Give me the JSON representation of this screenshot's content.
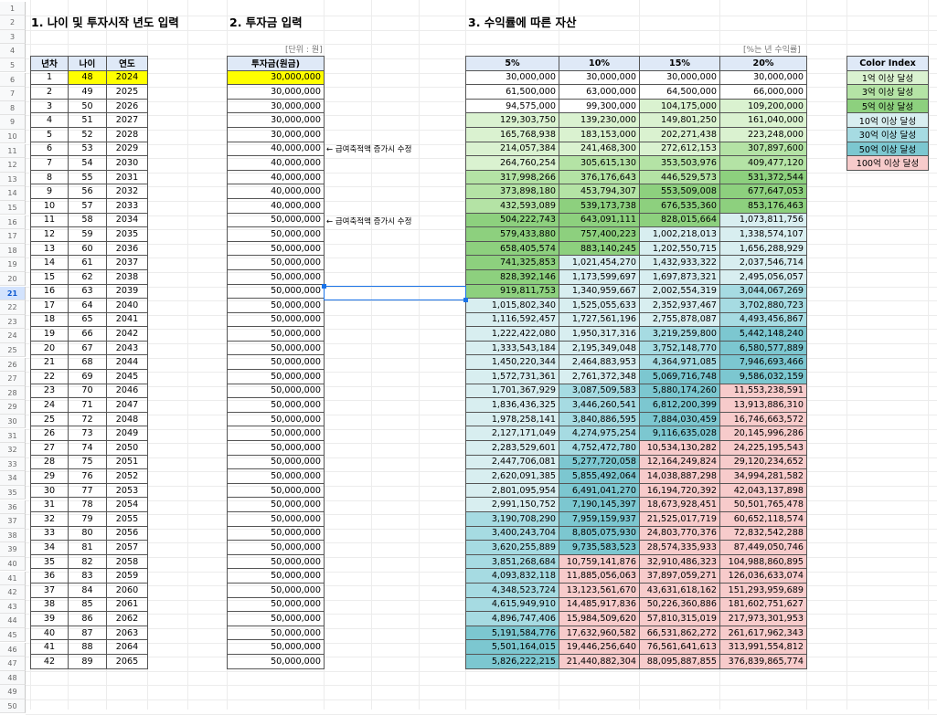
{
  "sections": {
    "s1": "1. 나이 및 투자시작 년도 입력",
    "s2": "2. 투자금 입력",
    "s3": "3. 수익률에 따른 자산"
  },
  "unit_label": "[단위 : 원]",
  "rate_note": "[%는 년 수익률]",
  "table1_headers": [
    "년차",
    "나이",
    "연도"
  ],
  "table2_header": "투자금(원금)",
  "table3_headers": [
    "5%",
    "10%",
    "15%",
    "20%"
  ],
  "notes": {
    "n1": "← 급여축적액 증가시 수정",
    "n2": "← 급여축적액 증가시 수정"
  },
  "color_index": {
    "title": "Color Index",
    "items": [
      {
        "label": "1억 이상 달성",
        "color": "#daf2d0"
      },
      {
        "label": "3억 이상 달성",
        "color": "#b4e3a5"
      },
      {
        "label": "5억 이상 달성",
        "color": "#8dd07e"
      },
      {
        "label": "10억 이상 달성",
        "color": "#d8eef0"
      },
      {
        "label": "30억 이상 달성",
        "color": "#a6dbe2"
      },
      {
        "label": "50억 이상 달성",
        "color": "#7cc7d0"
      },
      {
        "label": "100억 이상 달성",
        "color": "#f7cbcb"
      }
    ]
  },
  "rows": [
    {
      "n": "1",
      "age": "48",
      "year": "2024",
      "inv": "30,000,000",
      "v": [
        "30,000,000",
        "30,000,000",
        "30,000,000",
        "30,000,000"
      ]
    },
    {
      "n": "2",
      "age": "49",
      "year": "2025",
      "inv": "30,000,000",
      "v": [
        "61,500,000",
        "63,000,000",
        "64,500,000",
        "66,000,000"
      ]
    },
    {
      "n": "3",
      "age": "50",
      "year": "2026",
      "inv": "30,000,000",
      "v": [
        "94,575,000",
        "99,300,000",
        "104,175,000",
        "109,200,000"
      ]
    },
    {
      "n": "4",
      "age": "51",
      "year": "2027",
      "inv": "30,000,000",
      "v": [
        "129,303,750",
        "139,230,000",
        "149,801,250",
        "161,040,000"
      ]
    },
    {
      "n": "5",
      "age": "52",
      "year": "2028",
      "inv": "30,000,000",
      "v": [
        "165,768,938",
        "183,153,000",
        "202,271,438",
        "223,248,000"
      ]
    },
    {
      "n": "6",
      "age": "53",
      "year": "2029",
      "inv": "40,000,000",
      "v": [
        "214,057,384",
        "241,468,300",
        "272,612,153",
        "307,897,600"
      ]
    },
    {
      "n": "7",
      "age": "54",
      "year": "2030",
      "inv": "40,000,000",
      "v": [
        "264,760,254",
        "305,615,130",
        "353,503,976",
        "409,477,120"
      ]
    },
    {
      "n": "8",
      "age": "55",
      "year": "2031",
      "inv": "40,000,000",
      "v": [
        "317,998,266",
        "376,176,643",
        "446,529,573",
        "531,372,544"
      ]
    },
    {
      "n": "9",
      "age": "56",
      "year": "2032",
      "inv": "40,000,000",
      "v": [
        "373,898,180",
        "453,794,307",
        "553,509,008",
        "677,647,053"
      ]
    },
    {
      "n": "10",
      "age": "57",
      "year": "2033",
      "inv": "40,000,000",
      "v": [
        "432,593,089",
        "539,173,738",
        "676,535,360",
        "853,176,463"
      ]
    },
    {
      "n": "11",
      "age": "58",
      "year": "2034",
      "inv": "50,000,000",
      "v": [
        "504,222,743",
        "643,091,111",
        "828,015,664",
        "1,073,811,756"
      ]
    },
    {
      "n": "12",
      "age": "59",
      "year": "2035",
      "inv": "50,000,000",
      "v": [
        "579,433,880",
        "757,400,223",
        "1,002,218,013",
        "1,338,574,107"
      ]
    },
    {
      "n": "13",
      "age": "60",
      "year": "2036",
      "inv": "50,000,000",
      "v": [
        "658,405,574",
        "883,140,245",
        "1,202,550,715",
        "1,656,288,929"
      ]
    },
    {
      "n": "14",
      "age": "61",
      "year": "2037",
      "inv": "50,000,000",
      "v": [
        "741,325,853",
        "1,021,454,270",
        "1,432,933,322",
        "2,037,546,714"
      ]
    },
    {
      "n": "15",
      "age": "62",
      "year": "2038",
      "inv": "50,000,000",
      "v": [
        "828,392,146",
        "1,173,599,697",
        "1,697,873,321",
        "2,495,056,057"
      ]
    },
    {
      "n": "16",
      "age": "63",
      "year": "2039",
      "inv": "50,000,000",
      "v": [
        "919,811,753",
        "1,340,959,667",
        "2,002,554,319",
        "3,044,067,269"
      ]
    },
    {
      "n": "17",
      "age": "64",
      "year": "2040",
      "inv": "50,000,000",
      "v": [
        "1,015,802,340",
        "1,525,055,633",
        "2,352,937,467",
        "3,702,880,723"
      ]
    },
    {
      "n": "18",
      "age": "65",
      "year": "2041",
      "inv": "50,000,000",
      "v": [
        "1,116,592,457",
        "1,727,561,196",
        "2,755,878,087",
        "4,493,456,867"
      ]
    },
    {
      "n": "19",
      "age": "66",
      "year": "2042",
      "inv": "50,000,000",
      "v": [
        "1,222,422,080",
        "1,950,317,316",
        "3,219,259,800",
        "5,442,148,240"
      ]
    },
    {
      "n": "20",
      "age": "67",
      "year": "2043",
      "inv": "50,000,000",
      "v": [
        "1,333,543,184",
        "2,195,349,048",
        "3,752,148,770",
        "6,580,577,889"
      ]
    },
    {
      "n": "21",
      "age": "68",
      "year": "2044",
      "inv": "50,000,000",
      "v": [
        "1,450,220,344",
        "2,464,883,953",
        "4,364,971,085",
        "7,946,693,466"
      ]
    },
    {
      "n": "22",
      "age": "69",
      "year": "2045",
      "inv": "50,000,000",
      "v": [
        "1,572,731,361",
        "2,761,372,348",
        "5,069,716,748",
        "9,586,032,159"
      ]
    },
    {
      "n": "23",
      "age": "70",
      "year": "2046",
      "inv": "50,000,000",
      "v": [
        "1,701,367,929",
        "3,087,509,583",
        "5,880,174,260",
        "11,553,238,591"
      ]
    },
    {
      "n": "24",
      "age": "71",
      "year": "2047",
      "inv": "50,000,000",
      "v": [
        "1,836,436,325",
        "3,446,260,541",
        "6,812,200,399",
        "13,913,886,310"
      ]
    },
    {
      "n": "25",
      "age": "72",
      "year": "2048",
      "inv": "50,000,000",
      "v": [
        "1,978,258,141",
        "3,840,886,595",
        "7,884,030,459",
        "16,746,663,572"
      ]
    },
    {
      "n": "26",
      "age": "73",
      "year": "2049",
      "inv": "50,000,000",
      "v": [
        "2,127,171,049",
        "4,274,975,254",
        "9,116,635,028",
        "20,145,996,286"
      ]
    },
    {
      "n": "27",
      "age": "74",
      "year": "2050",
      "inv": "50,000,000",
      "v": [
        "2,283,529,601",
        "4,752,472,780",
        "10,534,130,282",
        "24,225,195,543"
      ]
    },
    {
      "n": "28",
      "age": "75",
      "year": "2051",
      "inv": "50,000,000",
      "v": [
        "2,447,706,081",
        "5,277,720,058",
        "12,164,249,824",
        "29,120,234,652"
      ]
    },
    {
      "n": "29",
      "age": "76",
      "year": "2052",
      "inv": "50,000,000",
      "v": [
        "2,620,091,385",
        "5,855,492,064",
        "14,038,887,298",
        "34,994,281,582"
      ]
    },
    {
      "n": "30",
      "age": "77",
      "year": "2053",
      "inv": "50,000,000",
      "v": [
        "2,801,095,954",
        "6,491,041,270",
        "16,194,720,392",
        "42,043,137,898"
      ]
    },
    {
      "n": "31",
      "age": "78",
      "year": "2054",
      "inv": "50,000,000",
      "v": [
        "2,991,150,752",
        "7,190,145,397",
        "18,673,928,451",
        "50,501,765,478"
      ]
    },
    {
      "n": "32",
      "age": "79",
      "year": "2055",
      "inv": "50,000,000",
      "v": [
        "3,190,708,290",
        "7,959,159,937",
        "21,525,017,719",
        "60,652,118,574"
      ]
    },
    {
      "n": "33",
      "age": "80",
      "year": "2056",
      "inv": "50,000,000",
      "v": [
        "3,400,243,704",
        "8,805,075,930",
        "24,803,770,376",
        "72,832,542,288"
      ]
    },
    {
      "n": "34",
      "age": "81",
      "year": "2057",
      "inv": "50,000,000",
      "v": [
        "3,620,255,889",
        "9,735,583,523",
        "28,574,335,933",
        "87,449,050,746"
      ]
    },
    {
      "n": "35",
      "age": "82",
      "year": "2058",
      "inv": "50,000,000",
      "v": [
        "3,851,268,684",
        "10,759,141,876",
        "32,910,486,323",
        "104,988,860,895"
      ]
    },
    {
      "n": "36",
      "age": "83",
      "year": "2059",
      "inv": "50,000,000",
      "v": [
        "4,093,832,118",
        "11,885,056,063",
        "37,897,059,271",
        "126,036,633,074"
      ]
    },
    {
      "n": "37",
      "age": "84",
      "year": "2060",
      "inv": "50,000,000",
      "v": [
        "4,348,523,724",
        "13,123,561,670",
        "43,631,618,162",
        "151,293,959,689"
      ]
    },
    {
      "n": "38",
      "age": "85",
      "year": "2061",
      "inv": "50,000,000",
      "v": [
        "4,615,949,910",
        "14,485,917,836",
        "50,226,360,886",
        "181,602,751,627"
      ]
    },
    {
      "n": "39",
      "age": "86",
      "year": "2062",
      "inv": "50,000,000",
      "v": [
        "4,896,747,406",
        "15,984,509,620",
        "57,810,315,019",
        "217,973,301,953"
      ]
    },
    {
      "n": "40",
      "age": "87",
      "year": "2063",
      "inv": "50,000,000",
      "v": [
        "5,191,584,776",
        "17,632,960,582",
        "66,531,862,272",
        "261,617,962,343"
      ]
    },
    {
      "n": "41",
      "age": "88",
      "year": "2064",
      "inv": "50,000,000",
      "v": [
        "5,501,164,015",
        "19,446,256,640",
        "76,561,641,613",
        "313,991,554,812"
      ]
    },
    {
      "n": "42",
      "age": "89",
      "year": "2065",
      "inv": "50,000,000",
      "v": [
        "5,826,222,215",
        "21,440,882,304",
        "88,095,887,855",
        "376,839,865,774"
      ]
    }
  ],
  "highlight_color": "#ffff00",
  "selected_row": "21"
}
